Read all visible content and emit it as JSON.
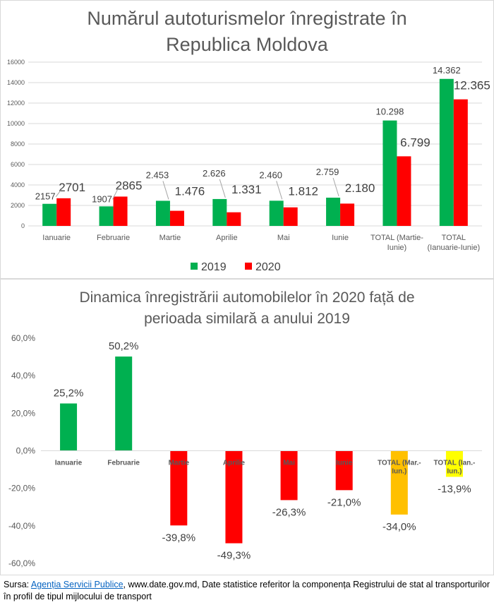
{
  "chart_data": [
    {
      "type": "bar",
      "title": "Numărul autoturismelor înregistrate în Republica Moldova",
      "title_lines": [
        "Numărul autoturismelor înregistrate în",
        "Republica Moldova"
      ],
      "categories": [
        "Ianuarie",
        "Februarie",
        "Martie",
        "Aprilie",
        "Mai",
        "Iunie",
        "TOTAL (Martie-Iunie)",
        "TOTAL (Ianuarie-Iunie)"
      ],
      "category_lines": [
        [
          "Ianuarie"
        ],
        [
          "Februarie"
        ],
        [
          "Martie"
        ],
        [
          "Aprilie"
        ],
        [
          "Mai"
        ],
        [
          "Iunie"
        ],
        [
          "TOTAL (Martie-",
          "Iunie)"
        ],
        [
          "TOTAL",
          "(Ianuarie-Iunie)"
        ]
      ],
      "series": [
        {
          "name": "2019",
          "color": "#00b050",
          "values": [
            2157,
            1907,
            2453,
            2626,
            2460,
            2759,
            10298,
            14362
          ],
          "labels": [
            "2157",
            "1907",
            "2.453",
            "2.626",
            "2.460",
            "2.759",
            "10.298",
            "14.362"
          ]
        },
        {
          "name": "2020",
          "color": "#ff0000",
          "values": [
            2701,
            2865,
            1476,
            1331,
            1812,
            2180,
            6799,
            12365
          ],
          "labels": [
            "2701",
            "2865",
            "1.476",
            "1.331",
            "1.812",
            "2.180",
            "6.799",
            "12.365"
          ]
        }
      ],
      "ylim": [
        0,
        16000
      ],
      "yticks": [
        "0",
        "2000",
        "4000",
        "6000",
        "8000",
        "10000",
        "12000",
        "14000",
        "16000"
      ],
      "grid": true,
      "legend": "bottom"
    },
    {
      "type": "bar",
      "title": "Dinamica înregistrării automobilelor în 2020 față de perioada similară a anului 2019",
      "title_lines": [
        "Dinamica înregistrării automobilelor în 2020 față de",
        "perioada similară a anului 2019"
      ],
      "categories": [
        "Ianuarie",
        "Februarie",
        "Martie",
        "Aprilie",
        "Mai",
        "Iunie",
        "TOTAL (Mar.-Iun.)",
        "TOTAL (Ian.-Iun.)"
      ],
      "category_lines": [
        [
          "Ianuarie"
        ],
        [
          "Februarie"
        ],
        [
          "Martie"
        ],
        [
          "Aprilie"
        ],
        [
          "Mai"
        ],
        [
          "Iunie"
        ],
        [
          "TOTAL (Mar.-",
          "Iun.)"
        ],
        [
          "TOTAL (Ian.-",
          "Iun.)"
        ]
      ],
      "values": [
        25.2,
        50.2,
        -39.8,
        -49.3,
        -26.3,
        -21.0,
        -34.0,
        -13.9
      ],
      "labels": [
        "25,2%",
        "50,2%",
        "-39,8%",
        "-49,3%",
        "-26,3%",
        "-21,0%",
        "-34,0%",
        "-13,9%"
      ],
      "colors": [
        "#00b050",
        "#00b050",
        "#ff0000",
        "#ff0000",
        "#ff0000",
        "#ff0000",
        "#ffc000",
        "#ffff00"
      ],
      "ylim": [
        -60,
        60
      ],
      "yticks": [
        "-60,0%",
        "-40,0%",
        "-20,0%",
        "0,0%",
        "20,0%",
        "40,0%",
        "60,0%"
      ],
      "grid": false,
      "legend": "none"
    }
  ],
  "source": {
    "prefix": "Sursa:  ",
    "link_text": "Agenția Servicii Publice",
    "suffix": ", www.date.gov.md, Date statistice referitor la componența  Registrului de stat al transporturilor în profil de tipul mijlocului de transport"
  }
}
